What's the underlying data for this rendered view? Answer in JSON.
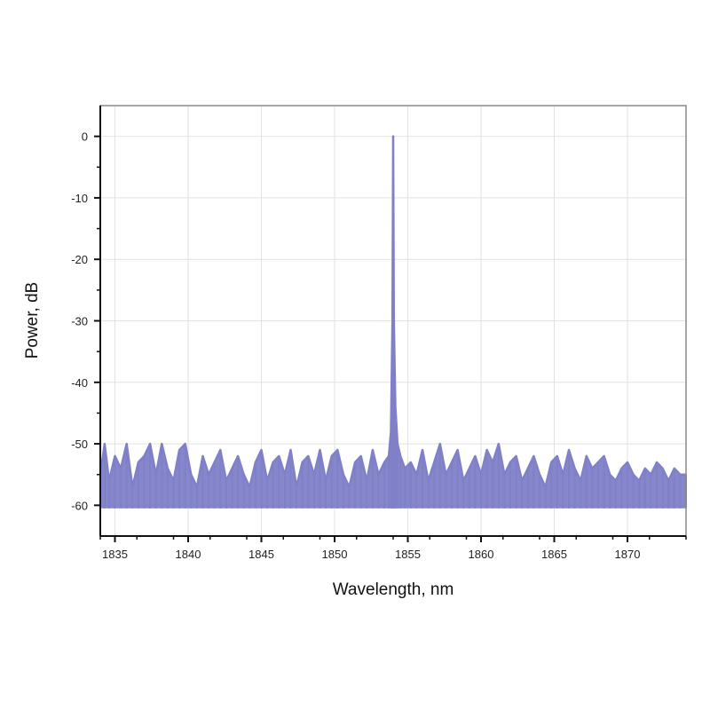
{
  "chart_data": {
    "type": "line",
    "title": "",
    "xlabel": "Wavelength, nm",
    "ylabel": "Power, dB",
    "xlim": [
      1834,
      1874
    ],
    "ylim": [
      -65,
      5
    ],
    "x_ticks": [
      1835,
      1840,
      1845,
      1850,
      1855,
      1860,
      1865,
      1870
    ],
    "y_ticks": [
      0,
      -10,
      -20,
      -30,
      -40,
      -50,
      -60
    ],
    "x_tick_labels": [
      "1835",
      "1840",
      "1845",
      "1850",
      "1855",
      "1860",
      "1865",
      "1870"
    ],
    "y_tick_labels": [
      "0",
      "-10",
      "-20",
      "-30",
      "-40",
      "-50",
      "-60"
    ],
    "grid": true,
    "legend": "none",
    "series": [
      {
        "color": "#8080c8",
        "x": [
          1834.0,
          1834.3,
          1834.6,
          1835.0,
          1835.4,
          1835.8,
          1836.2,
          1836.6,
          1837.0,
          1837.4,
          1837.8,
          1838.2,
          1838.6,
          1839.0,
          1839.4,
          1839.8,
          1840.2,
          1840.6,
          1841.0,
          1841.4,
          1841.8,
          1842.2,
          1842.6,
          1843.0,
          1843.4,
          1843.8,
          1844.2,
          1844.6,
          1845.0,
          1845.4,
          1845.8,
          1846.2,
          1846.6,
          1847.0,
          1847.4,
          1847.8,
          1848.2,
          1848.6,
          1849.0,
          1849.4,
          1849.8,
          1850.2,
          1850.6,
          1851.0,
          1851.4,
          1851.8,
          1852.2,
          1852.6,
          1853.0,
          1853.4,
          1853.7,
          1853.85,
          1853.95,
          1854.0,
          1854.05,
          1854.15,
          1854.3,
          1854.5,
          1854.8,
          1855.2,
          1855.6,
          1856.0,
          1856.4,
          1856.8,
          1857.2,
          1857.6,
          1858.0,
          1858.4,
          1858.8,
          1859.2,
          1859.6,
          1860.0,
          1860.4,
          1860.8,
          1861.2,
          1861.6,
          1862.0,
          1862.4,
          1862.8,
          1863.2,
          1863.6,
          1864.0,
          1864.4,
          1864.8,
          1865.2,
          1865.6,
          1866.0,
          1866.4,
          1866.8,
          1867.2,
          1867.6,
          1868.0,
          1868.4,
          1868.8,
          1869.2,
          1869.6,
          1870.0,
          1870.4,
          1870.8,
          1871.2,
          1871.6,
          1872.0,
          1872.4,
          1872.8,
          1873.2,
          1873.6,
          1874.0
        ],
        "y": [
          -55,
          -50,
          -56,
          -52,
          -54,
          -50,
          -57,
          -53,
          -52,
          -50,
          -55,
          -50,
          -54,
          -56,
          -51,
          -50,
          -55,
          -57,
          -52,
          -55,
          -53,
          -51,
          -56,
          -54,
          -52,
          -55,
          -57,
          -53,
          -51,
          -56,
          -53,
          -52,
          -55,
          -51,
          -57,
          -53,
          -52,
          -55,
          -51,
          -56,
          -52,
          -51,
          -55,
          -57,
          -53,
          -52,
          -56,
          -51,
          -55,
          -53,
          -52,
          -48,
          -30,
          0,
          -30,
          -44,
          -50,
          -52,
          -54,
          -53,
          -55,
          -51,
          -56,
          -53,
          -50,
          -55,
          -53,
          -51,
          -56,
          -54,
          -52,
          -55,
          -51,
          -53,
          -50,
          -55,
          -53,
          -52,
          -56,
          -54,
          -52,
          -55,
          -57,
          -53,
          -52,
          -55,
          -51,
          -54,
          -56,
          -52,
          -54,
          -53,
          -52,
          -55,
          -56,
          -54,
          -53,
          -55,
          -56,
          -54,
          -55,
          -53,
          -54,
          -56,
          -54,
          -55,
          -55
        ],
        "noise_floor": -60.5
      }
    ]
  }
}
